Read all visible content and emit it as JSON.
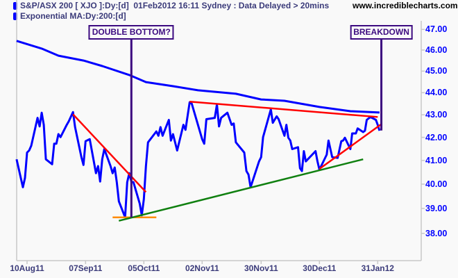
{
  "header": {
    "title": "S&P/ASX 200 [ XJO ]:Dy:[d]  01Feb2012 16:11 Sydney : Data Delayed > 20mins",
    "indicator": "Exponential MA:Dy:200:[d]",
    "watermark": "www.incrediblecharts.com"
  },
  "colors": {
    "price": "#0000ff",
    "ema": "#0000ff",
    "resistance": "#ff0000",
    "support": "#108010",
    "double_bottom_level": "#ff8c00",
    "annotation": "#3c0a80",
    "axis_labels": "#0000ff",
    "date_labels": "#3b3b7a"
  },
  "chart_data": {
    "type": "line",
    "y_scale": "log",
    "ylim": [
      37.3,
      48.2
    ],
    "grid": false,
    "yaxis_side": "right",
    "yticks": [
      "47.00",
      "46.00",
      "45.00",
      "44.00",
      "43.00",
      "42.00",
      "41.00",
      "40.00",
      "39.00",
      "38.00"
    ],
    "ytick_values": [
      47,
      46,
      45,
      44,
      43,
      42,
      41,
      40,
      39,
      38
    ],
    "xticks": [
      "10Aug11",
      "07Sep11",
      "05Oct11",
      "02Nov11",
      "30Nov11",
      "30Dec11",
      "31Jan12"
    ],
    "xtick_dates": [
      "2011-08-10",
      "2011-09-07",
      "2011-10-05",
      "2011-11-02",
      "2011-11-30",
      "2011-12-30",
      "2012-01-31"
    ],
    "series": [
      {
        "name": "S&P/ASX 200 [ XJO ]",
        "points": [
          [
            "2011-08-05",
            41.05
          ],
          [
            "2011-08-08",
            39.87
          ],
          [
            "2011-08-09",
            40.26
          ],
          [
            "2011-08-10",
            41.34
          ],
          [
            "2011-08-11",
            41.43
          ],
          [
            "2011-08-12",
            41.63
          ],
          [
            "2011-08-15",
            42.86
          ],
          [
            "2011-08-16",
            42.48
          ],
          [
            "2011-08-17",
            43.09
          ],
          [
            "2011-08-18",
            42.55
          ],
          [
            "2011-08-19",
            41.05
          ],
          [
            "2011-08-22",
            40.84
          ],
          [
            "2011-08-23",
            41.72
          ],
          [
            "2011-08-24",
            41.72
          ],
          [
            "2011-08-25",
            42.14
          ],
          [
            "2011-08-26",
            42.01
          ],
          [
            "2011-08-29",
            42.55
          ],
          [
            "2011-08-30",
            42.71
          ],
          [
            "2011-09-01",
            43.12
          ],
          [
            "2011-09-02",
            42.45
          ],
          [
            "2011-09-05",
            41.14
          ],
          [
            "2011-09-06",
            40.81
          ],
          [
            "2011-09-07",
            41.83
          ],
          [
            "2011-09-09",
            41.92
          ],
          [
            "2011-09-12",
            40.46
          ],
          [
            "2011-09-13",
            40.76
          ],
          [
            "2011-09-14",
            40.11
          ],
          [
            "2011-09-15",
            41.05
          ],
          [
            "2011-09-16",
            41.49
          ],
          [
            "2011-09-19",
            40.76
          ],
          [
            "2011-09-20",
            40.46
          ],
          [
            "2011-09-21",
            40.7
          ],
          [
            "2011-09-22",
            40.08
          ],
          [
            "2011-09-23",
            39.29
          ],
          [
            "2011-09-26",
            38.64
          ],
          [
            "2011-09-27",
            40.08
          ],
          [
            "2011-09-28",
            40.46
          ],
          [
            "2011-09-29",
            40.11
          ],
          [
            "2011-09-30",
            40.08
          ],
          [
            "2011-10-03",
            39.2
          ],
          [
            "2011-10-04",
            38.72
          ],
          [
            "2011-10-05",
            39.38
          ],
          [
            "2011-10-06",
            40.76
          ],
          [
            "2011-10-07",
            41.78
          ],
          [
            "2011-10-11",
            42.26
          ],
          [
            "2011-10-12",
            42.07
          ],
          [
            "2011-10-13",
            42.45
          ],
          [
            "2011-10-14",
            42.07
          ],
          [
            "2011-10-17",
            42.77
          ],
          [
            "2011-10-18",
            41.86
          ],
          [
            "2011-10-19",
            42.14
          ],
          [
            "2011-10-21",
            41.43
          ],
          [
            "2011-10-24",
            42.55
          ],
          [
            "2011-10-25",
            42.33
          ],
          [
            "2011-10-27",
            43.56
          ],
          [
            "2011-10-28",
            43.5
          ],
          [
            "2011-11-02",
            41.92
          ],
          [
            "2011-11-03",
            41.72
          ],
          [
            "2011-11-04",
            42.8
          ],
          [
            "2011-11-08",
            42.86
          ],
          [
            "2011-11-09",
            43.46
          ],
          [
            "2011-11-10",
            42.48
          ],
          [
            "2011-11-11",
            42.86
          ],
          [
            "2011-11-14",
            43.09
          ],
          [
            "2011-11-16",
            42.55
          ],
          [
            "2011-11-17",
            42.61
          ],
          [
            "2011-11-18",
            41.78
          ],
          [
            "2011-11-22",
            41.34
          ],
          [
            "2011-11-23",
            40.55
          ],
          [
            "2011-11-24",
            40.4
          ],
          [
            "2011-11-25",
            39.87
          ],
          [
            "2011-11-29",
            40.96
          ],
          [
            "2011-11-30",
            41.14
          ],
          [
            "2011-12-01",
            42.01
          ],
          [
            "2011-12-05",
            43.24
          ],
          [
            "2011-12-06",
            42.64
          ],
          [
            "2011-12-08",
            42.93
          ],
          [
            "2011-12-09",
            42.8
          ],
          [
            "2011-12-12",
            42.07
          ],
          [
            "2011-12-13",
            42.55
          ],
          [
            "2011-12-14",
            41.98
          ],
          [
            "2011-12-15",
            41.86
          ],
          [
            "2011-12-16",
            41.49
          ],
          [
            "2011-12-19",
            41.57
          ],
          [
            "2011-12-20",
            40.67
          ],
          [
            "2011-12-21",
            40.55
          ],
          [
            "2011-12-22",
            41.4
          ],
          [
            "2011-12-23",
            40.96
          ],
          [
            "2011-12-28",
            41.4
          ],
          [
            "2011-12-29",
            40.96
          ],
          [
            "2011-12-30",
            40.61
          ],
          [
            "2012-01-03",
            41.25
          ],
          [
            "2012-01-04",
            41.86
          ],
          [
            "2012-01-06",
            41.14
          ],
          [
            "2012-01-09",
            41.11
          ],
          [
            "2012-01-11",
            41.83
          ],
          [
            "2012-01-12",
            41.86
          ],
          [
            "2012-01-13",
            41.98
          ],
          [
            "2012-01-16",
            41.49
          ],
          [
            "2012-01-17",
            42.17
          ],
          [
            "2012-01-19",
            42.17
          ],
          [
            "2012-01-20",
            42.39
          ],
          [
            "2012-01-23",
            42.23
          ],
          [
            "2012-01-24",
            42.29
          ],
          [
            "2012-01-25",
            42.77
          ],
          [
            "2012-01-27",
            42.9
          ],
          [
            "2012-01-30",
            42.77
          ],
          [
            "2012-01-31",
            42.55
          ],
          [
            "2012-02-01",
            42.29
          ]
        ]
      },
      {
        "name": "Exponential MA:Dy:200:[d]",
        "points": [
          [
            "2011-08-05",
            46.44
          ],
          [
            "2011-08-17",
            46.07
          ],
          [
            "2011-08-25",
            45.73
          ],
          [
            "2011-09-06",
            45.5
          ],
          [
            "2011-09-15",
            45.24
          ],
          [
            "2011-09-28",
            44.82
          ],
          [
            "2011-10-06",
            44.49
          ],
          [
            "2011-10-19",
            44.3
          ],
          [
            "2011-10-31",
            44.11
          ],
          [
            "2011-11-18",
            43.95
          ],
          [
            "2011-11-30",
            43.69
          ],
          [
            "2011-12-12",
            43.63
          ],
          [
            "2011-12-30",
            43.35
          ],
          [
            "2012-01-16",
            43.16
          ],
          [
            "2012-02-01",
            43.1
          ]
        ]
      }
    ],
    "annotations": {
      "lines": [
        {
          "kind": "resistance",
          "from": [
            "2011-09-01",
            43.02
          ],
          "to": [
            "2011-10-06",
            39.67
          ]
        },
        {
          "kind": "double_bottom_level",
          "from": [
            "2011-09-20",
            38.64
          ],
          "to": [
            "2011-10-11",
            38.64
          ]
        },
        {
          "kind": "support",
          "from": [
            "2011-09-23",
            38.5
          ],
          "to": [
            "2012-01-23",
            41.05
          ]
        },
        {
          "kind": "resistance",
          "from": [
            "2011-10-27",
            43.59
          ],
          "to": [
            "2012-01-31",
            42.9
          ]
        },
        {
          "kind": "resistance",
          "from": [
            "2011-12-30",
            40.64
          ],
          "to": [
            "2012-02-02",
            42.58
          ]
        }
      ],
      "callouts": [
        {
          "label": "DOUBLE BOTTOM?",
          "date": "2011-09-29",
          "to_value": 38.64
        },
        {
          "label": "BREAKDOWN",
          "date": "2012-02-02",
          "to_value": 42.3
        }
      ]
    }
  }
}
